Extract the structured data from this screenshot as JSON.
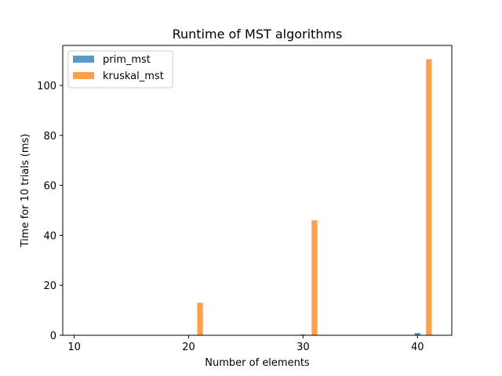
{
  "chart_data": {
    "type": "bar",
    "title": "Runtime of MST algorithms",
    "xlabel": "Number of elements",
    "ylabel": "Time for 10 trials (ms)",
    "xlim": [
      9,
      43
    ],
    "ylim": [
      0,
      116
    ],
    "x_ticks": [
      10,
      20,
      30,
      40
    ],
    "y_ticks": [
      0,
      20,
      40,
      60,
      80,
      100
    ],
    "grid": false,
    "legend": "top-left",
    "bar_width": 0.5,
    "series": [
      {
        "name": "prim_mst",
        "color": "#1f77b4",
        "opacity": 0.75,
        "points": [
          {
            "x": 10,
            "y": 0.02
          },
          {
            "x": 20,
            "y": 0.1
          },
          {
            "x": 30,
            "y": 0.3
          },
          {
            "x": 40,
            "y": 0.9
          }
        ]
      },
      {
        "name": "kruskal_mst",
        "color": "#ff7f0e",
        "opacity": 0.75,
        "points": [
          {
            "x": 11,
            "y": 0.05
          },
          {
            "x": 21,
            "y": 13
          },
          {
            "x": 31,
            "y": 46
          },
          {
            "x": 41,
            "y": 110.5
          }
        ]
      }
    ]
  }
}
